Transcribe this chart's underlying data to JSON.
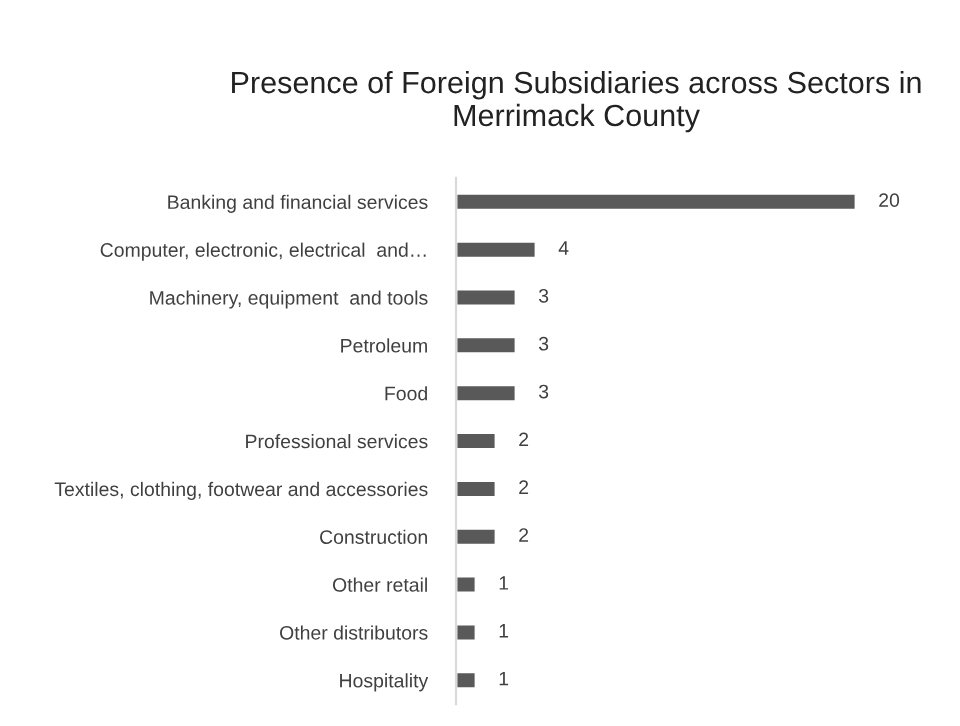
{
  "chart_data": {
    "type": "bar",
    "orientation": "horizontal",
    "title": "Presence of Foreign Subsidiaries across Sectors in Merrimack County",
    "categories": [
      "Banking and financial services",
      "Computer, electronic, electrical  and…",
      "Machinery, equipment  and tools",
      "Petroleum",
      "Food",
      "Professional services",
      "Textiles, clothing, footwear and accessories",
      "Construction",
      "Other retail",
      "Other distributors",
      "Hospitality"
    ],
    "values": [
      20,
      4,
      3,
      3,
      3,
      2,
      2,
      2,
      1,
      1,
      1
    ],
    "color": "#595959",
    "data_labels": true,
    "grid": false,
    "legend": false
  }
}
